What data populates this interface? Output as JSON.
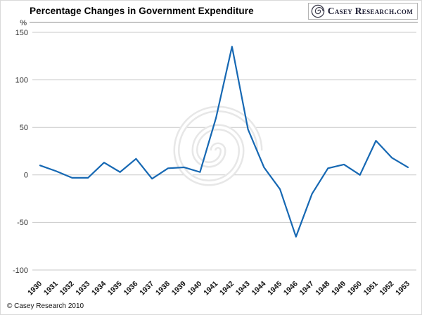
{
  "header": {
    "title": "Percentage Changes in Government Expenditure",
    "logo": {
      "casey": "Casey ",
      "research": "Research",
      "suffix": ".com"
    }
  },
  "footer": {
    "copyright": "© Casey Research 2010"
  },
  "chart_data": {
    "type": "line",
    "title": "Percentage Changes in Government Expenditure",
    "xlabel": "",
    "ylabel": "%",
    "ylim": [
      -100,
      150
    ],
    "yticks": [
      150,
      100,
      50,
      0,
      -50,
      -100
    ],
    "grid": true,
    "legend": "none",
    "line_color": "#1668b3",
    "categories": [
      "1930",
      "1931",
      "1932",
      "1933",
      "1934",
      "1935",
      "1936",
      "1937",
      "1938",
      "1939",
      "1940",
      "1941",
      "1942",
      "1943",
      "1944",
      "1945",
      "1946",
      "1947",
      "1948",
      "1949",
      "1950",
      "1951",
      "1952",
      "1953"
    ],
    "values": [
      10,
      4,
      -3,
      -3,
      13,
      3,
      17,
      -4,
      7,
      8,
      3,
      60,
      135,
      48,
      8,
      -15,
      -65,
      -20,
      7,
      11,
      0,
      36,
      18,
      8
    ]
  }
}
